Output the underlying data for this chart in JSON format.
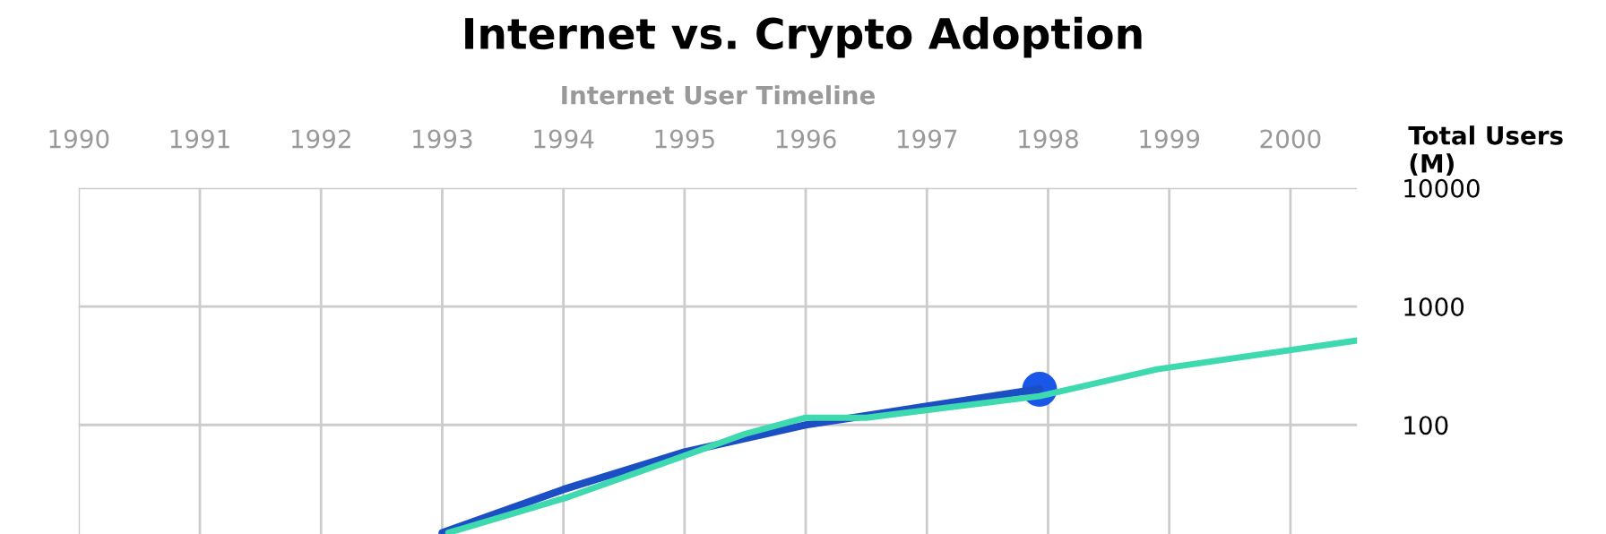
{
  "chart_data": {
    "type": "line",
    "title": "Internet vs. Crypto Adoption",
    "xlabel": "Internet User Timeline",
    "ylabel": "Total Users\n(M)",
    "series": [
      {
        "color": "#1d4fc4",
        "x": [
          1993,
          1994,
          1995,
          1996,
          1997.93
        ],
        "values": [
          12.3,
          28.5,
          59,
          100,
          201
        ]
      },
      {
        "color": "#3fd9b0",
        "x": [
          1993.05,
          1994.05,
          1995,
          1995.5,
          1996,
          1996.5,
          1997.93,
          1998.9,
          2000.55
        ],
        "values": [
          12.3,
          24.8,
          55,
          84,
          115,
          115,
          175,
          295,
          516
        ]
      },
      {
        "type": "scatter",
        "color": "#1a56e8",
        "marker": "circle",
        "x": [
          1997.93
        ],
        "values": [
          200
        ]
      }
    ],
    "log": "y",
    "xlim": [
      1990,
      2000.55
    ],
    "ylim": [
      12,
      10000
    ],
    "xticks": [
      1990,
      1991,
      1992,
      1993,
      1994,
      1995,
      1996,
      1997,
      1998,
      1999,
      2000
    ],
    "yticks": [
      100,
      1000,
      10000
    ],
    "grid": true
  }
}
